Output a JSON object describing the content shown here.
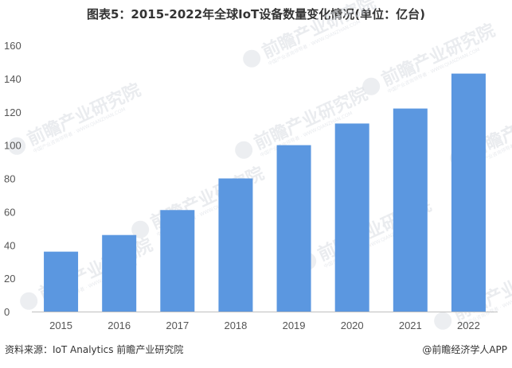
{
  "chart_data": {
    "type": "bar",
    "title": "图表5：2015-2022年全球IoT设备数量变化情况(单位：亿台)",
    "xlabel": "",
    "ylabel": "",
    "categories": [
      "2015",
      "2016",
      "2017",
      "2018",
      "2019",
      "2020",
      "2021",
      "2022"
    ],
    "values": [
      36,
      46,
      61,
      80,
      100,
      113,
      122,
      143
    ],
    "ylim": [
      0,
      160
    ],
    "yticks": [
      "0",
      "20",
      "40",
      "60",
      "80",
      "100",
      "120",
      "140",
      "160"
    ],
    "grid": false,
    "bar_color": "#5b97e0"
  },
  "footer": {
    "source": "资料来源：IoT Analytics 前瞻产业研究院",
    "brand": "@前瞻经济学人APP"
  },
  "watermark": {
    "text": "前瞻产业研究院",
    "sub": "中国产业咨询领导者 · WWW.QIANZHAN.COM"
  }
}
